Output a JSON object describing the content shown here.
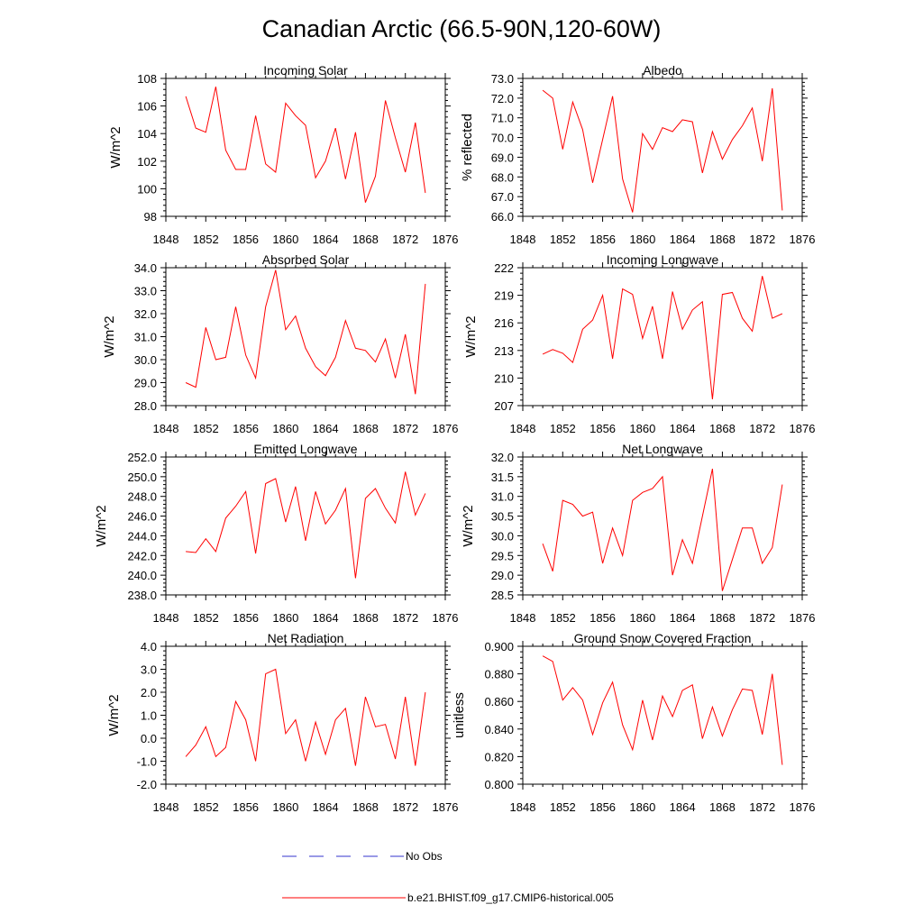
{
  "title": "Canadian Arctic (66.5-90N,120-60W)",
  "legend": {
    "no_obs": "No Obs",
    "model": "b.e21.BHIST.f09_g17.CMIP6-historical.005",
    "no_obs_color": "#3333cc",
    "model_color": "#ff0000"
  },
  "chart_data": [
    {
      "type": "line",
      "title": "Incoming Solar",
      "ylabel": "W/m^2",
      "xlabel": "",
      "xlim": [
        1848,
        1876
      ],
      "xticks": [
        1848,
        1852,
        1856,
        1860,
        1864,
        1868,
        1872,
        1876
      ],
      "xtick_labels": [
        "1848",
        "1852",
        "1856",
        "1860",
        "1864",
        "1868",
        "1872",
        "1876"
      ],
      "ylim": [
        98,
        108
      ],
      "yticks": [
        98,
        100,
        102,
        104,
        106,
        108
      ],
      "ytick_labels": [
        "98",
        "100",
        "102",
        "104",
        "106",
        "108"
      ],
      "x": [
        1850,
        1851,
        1852,
        1853,
        1854,
        1855,
        1856,
        1857,
        1858,
        1859,
        1860,
        1861,
        1862,
        1863,
        1864,
        1865,
        1866,
        1867,
        1868,
        1869,
        1870,
        1871,
        1872,
        1873,
        1874
      ],
      "values": [
        106.7,
        104.4,
        104.1,
        107.4,
        102.8,
        101.4,
        101.4,
        105.3,
        101.8,
        101.2,
        106.2,
        105.3,
        104.6,
        100.8,
        102.0,
        104.4,
        100.7,
        104.1,
        99.0,
        100.9,
        106.4,
        103.7,
        101.2,
        104.8,
        99.7
      ]
    },
    {
      "type": "line",
      "title": "Albedo",
      "ylabel": "% reflected",
      "xlabel": "",
      "xlim": [
        1848,
        1876
      ],
      "xticks": [
        1848,
        1852,
        1856,
        1860,
        1864,
        1868,
        1872,
        1876
      ],
      "xtick_labels": [
        "1848",
        "1852",
        "1856",
        "1860",
        "1864",
        "1868",
        "1872",
        "1876"
      ],
      "ylim": [
        66,
        73
      ],
      "yticks": [
        66,
        67,
        68,
        69,
        70,
        71,
        72,
        73
      ],
      "ytick_labels": [
        "66.0",
        "67.0",
        "68.0",
        "69.0",
        "70.0",
        "71.0",
        "72.0",
        "73.0"
      ],
      "x": [
        1850,
        1851,
        1852,
        1853,
        1854,
        1855,
        1856,
        1857,
        1858,
        1859,
        1860,
        1861,
        1862,
        1863,
        1864,
        1865,
        1866,
        1867,
        1868,
        1869,
        1870,
        1871,
        1872,
        1873,
        1874
      ],
      "values": [
        72.4,
        72.0,
        69.4,
        71.8,
        70.4,
        67.7,
        69.9,
        72.1,
        67.9,
        66.2,
        70.2,
        69.4,
        70.5,
        70.3,
        70.9,
        70.8,
        68.2,
        70.3,
        68.9,
        69.9,
        70.6,
        71.5,
        68.8,
        72.5,
        66.3
      ]
    },
    {
      "type": "line",
      "title": "Absorbed Solar",
      "ylabel": "W/m^2",
      "xlabel": "",
      "xlim": [
        1848,
        1876
      ],
      "xticks": [
        1848,
        1852,
        1856,
        1860,
        1864,
        1868,
        1872,
        1876
      ],
      "xtick_labels": [
        "1848",
        "1852",
        "1856",
        "1860",
        "1864",
        "1868",
        "1872",
        "1876"
      ],
      "ylim": [
        28,
        34
      ],
      "yticks": [
        28,
        29,
        30,
        31,
        32,
        33,
        34
      ],
      "ytick_labels": [
        "28.0",
        "29.0",
        "30.0",
        "31.0",
        "32.0",
        "33.0",
        "34.0"
      ],
      "x": [
        1850,
        1851,
        1852,
        1853,
        1854,
        1855,
        1856,
        1857,
        1858,
        1859,
        1860,
        1861,
        1862,
        1863,
        1864,
        1865,
        1866,
        1867,
        1868,
        1869,
        1870,
        1871,
        1872,
        1873,
        1874
      ],
      "values": [
        29.0,
        28.8,
        31.4,
        30.0,
        30.1,
        32.3,
        30.2,
        29.2,
        32.3,
        33.9,
        31.3,
        31.9,
        30.5,
        29.7,
        29.3,
        30.1,
        31.7,
        30.5,
        30.4,
        29.9,
        30.9,
        29.2,
        31.1,
        28.5,
        33.3
      ]
    },
    {
      "type": "line",
      "title": "Incoming Longwave",
      "ylabel": "W/m^2",
      "xlabel": "",
      "xlim": [
        1848,
        1876
      ],
      "xticks": [
        1848,
        1852,
        1856,
        1860,
        1864,
        1868,
        1872,
        1876
      ],
      "xtick_labels": [
        "1848",
        "1852",
        "1856",
        "1860",
        "1864",
        "1868",
        "1872",
        "1876"
      ],
      "ylim": [
        207,
        222
      ],
      "yticks": [
        207,
        210,
        213,
        216,
        219,
        222
      ],
      "ytick_labels": [
        "207",
        "210",
        "213",
        "216",
        "219",
        "222"
      ],
      "x": [
        1850,
        1851,
        1852,
        1853,
        1854,
        1855,
        1856,
        1857,
        1858,
        1859,
        1860,
        1861,
        1862,
        1863,
        1864,
        1865,
        1866,
        1867,
        1868,
        1869,
        1870,
        1871,
        1872,
        1873,
        1874
      ],
      "values": [
        212.6,
        213.1,
        212.7,
        211.7,
        215.3,
        216.3,
        219.0,
        212.1,
        219.7,
        219.1,
        214.3,
        217.8,
        212.1,
        219.4,
        215.3,
        217.4,
        218.3,
        207.7,
        219.1,
        219.3,
        216.5,
        215.1,
        221.1,
        216.5,
        217.0
      ]
    },
    {
      "type": "line",
      "title": "Emitted Longwave",
      "ylabel": "W/m^2",
      "xlabel": "",
      "xlim": [
        1848,
        1876
      ],
      "xticks": [
        1848,
        1852,
        1856,
        1860,
        1864,
        1868,
        1872,
        1876
      ],
      "xtick_labels": [
        "1848",
        "1852",
        "1856",
        "1860",
        "1864",
        "1868",
        "1872",
        "1876"
      ],
      "ylim": [
        238,
        252
      ],
      "yticks": [
        238,
        240,
        242,
        244,
        246,
        248,
        250,
        252
      ],
      "ytick_labels": [
        "238.0",
        "240.0",
        "242.0",
        "244.0",
        "246.0",
        "248.0",
        "250.0",
        "252.0"
      ],
      "x": [
        1850,
        1851,
        1852,
        1853,
        1854,
        1855,
        1856,
        1857,
        1858,
        1859,
        1860,
        1861,
        1862,
        1863,
        1864,
        1865,
        1866,
        1867,
        1868,
        1869,
        1870,
        1871,
        1872,
        1873,
        1874
      ],
      "values": [
        242.4,
        242.3,
        243.7,
        242.4,
        245.8,
        247.0,
        248.5,
        242.2,
        249.3,
        249.8,
        245.4,
        249.0,
        243.5,
        248.5,
        245.2,
        246.6,
        248.8,
        239.7,
        247.8,
        248.8,
        246.8,
        245.3,
        250.5,
        246.1,
        248.3
      ]
    },
    {
      "type": "line",
      "title": "Net Longwave",
      "ylabel": "W/m^2",
      "xlabel": "",
      "xlim": [
        1848,
        1876
      ],
      "xticks": [
        1848,
        1852,
        1856,
        1860,
        1864,
        1868,
        1872,
        1876
      ],
      "xtick_labels": [
        "1848",
        "1852",
        "1856",
        "1860",
        "1864",
        "1868",
        "1872",
        "1876"
      ],
      "ylim": [
        28.5,
        32
      ],
      "yticks": [
        28.5,
        29,
        29.5,
        30,
        30.5,
        31,
        31.5,
        32
      ],
      "ytick_labels": [
        "28.5",
        "29.0",
        "29.5",
        "30.0",
        "30.5",
        "31.0",
        "31.5",
        "32.0"
      ],
      "x": [
        1850,
        1851,
        1852,
        1853,
        1854,
        1855,
        1856,
        1857,
        1858,
        1859,
        1860,
        1861,
        1862,
        1863,
        1864,
        1865,
        1866,
        1867,
        1868,
        1869,
        1870,
        1871,
        1872,
        1873,
        1874
      ],
      "values": [
        29.8,
        29.1,
        30.9,
        30.8,
        30.5,
        30.6,
        29.3,
        30.2,
        29.5,
        30.9,
        31.1,
        31.2,
        31.5,
        29.0,
        29.9,
        29.3,
        30.5,
        31.7,
        28.6,
        29.4,
        30.2,
        30.2,
        29.3,
        29.7,
        31.3
      ]
    },
    {
      "type": "line",
      "title": "Net Radiation",
      "ylabel": "W/m^2",
      "xlabel": "",
      "xlim": [
        1848,
        1876
      ],
      "xticks": [
        1848,
        1852,
        1856,
        1860,
        1864,
        1868,
        1872,
        1876
      ],
      "xtick_labels": [
        "1848",
        "1852",
        "1856",
        "1860",
        "1864",
        "1868",
        "1872",
        "1876"
      ],
      "ylim": [
        -2,
        4
      ],
      "yticks": [
        -2,
        -1,
        0,
        1,
        2,
        3,
        4
      ],
      "ytick_labels": [
        "-2.0",
        "-1.0",
        "0.0",
        "1.0",
        "2.0",
        "3.0",
        "4.0"
      ],
      "x": [
        1850,
        1851,
        1852,
        1853,
        1854,
        1855,
        1856,
        1857,
        1858,
        1859,
        1860,
        1861,
        1862,
        1863,
        1864,
        1865,
        1866,
        1867,
        1868,
        1869,
        1870,
        1871,
        1872,
        1873,
        1874
      ],
      "values": [
        -0.8,
        -0.3,
        0.5,
        -0.8,
        -0.4,
        1.6,
        0.8,
        -1.0,
        2.8,
        3.0,
        0.2,
        0.8,
        -1.0,
        0.7,
        -0.7,
        0.8,
        1.3,
        -1.2,
        1.8,
        0.5,
        0.6,
        -0.9,
        1.8,
        -1.2,
        2.0
      ]
    },
    {
      "type": "line",
      "title": "Ground Snow Covered Fraction",
      "ylabel": "unitless",
      "xlabel": "",
      "xlim": [
        1848,
        1876
      ],
      "xticks": [
        1848,
        1852,
        1856,
        1860,
        1864,
        1868,
        1872,
        1876
      ],
      "xtick_labels": [
        "1848",
        "1852",
        "1856",
        "1860",
        "1864",
        "1868",
        "1872",
        "1876"
      ],
      "ylim": [
        0.8,
        0.9
      ],
      "yticks": [
        0.8,
        0.82,
        0.84,
        0.86,
        0.88,
        0.9
      ],
      "ytick_labels": [
        "0.800",
        "0.820",
        "0.840",
        "0.860",
        "0.880",
        "0.900"
      ],
      "x": [
        1850,
        1851,
        1852,
        1853,
        1854,
        1855,
        1856,
        1857,
        1858,
        1859,
        1860,
        1861,
        1862,
        1863,
        1864,
        1865,
        1866,
        1867,
        1868,
        1869,
        1870,
        1871,
        1872,
        1873,
        1874
      ],
      "values": [
        0.893,
        0.889,
        0.861,
        0.87,
        0.861,
        0.836,
        0.859,
        0.874,
        0.843,
        0.825,
        0.861,
        0.832,
        0.864,
        0.849,
        0.868,
        0.872,
        0.833,
        0.856,
        0.835,
        0.854,
        0.869,
        0.868,
        0.836,
        0.88,
        0.814
      ]
    }
  ]
}
